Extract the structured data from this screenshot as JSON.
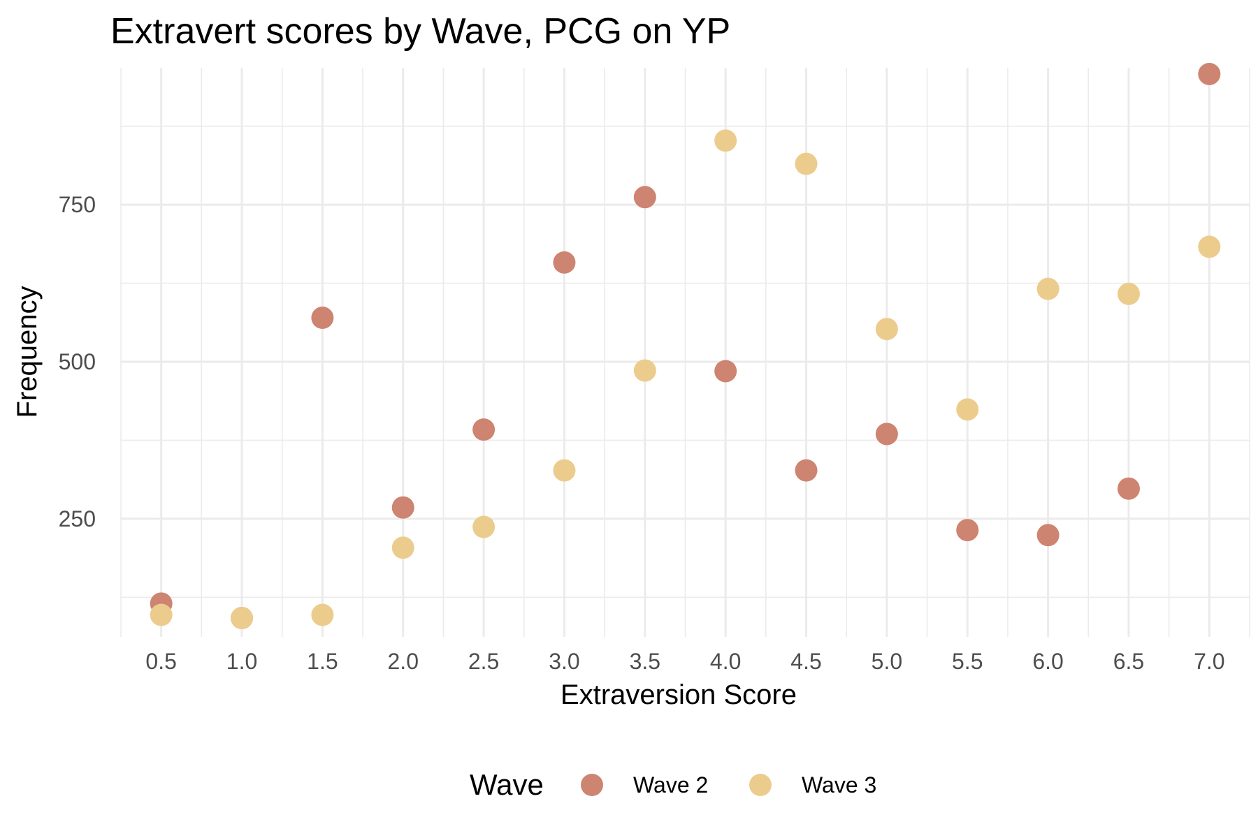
{
  "chart_data": {
    "type": "scatter",
    "title": "Extravert scores by Wave, PCG on YP",
    "xlabel": "Extraversion Score",
    "ylabel": "Frequency",
    "x": [
      0.5,
      1.0,
      1.5,
      2.0,
      2.5,
      3.0,
      3.5,
      4.0,
      4.5,
      5.0,
      5.5,
      6.0,
      6.5,
      7.0
    ],
    "x_tick_labels": [
      "0.5",
      "1.0",
      "1.5",
      "2.0",
      "2.5",
      "3.0",
      "3.5",
      "4.0",
      "4.5",
      "5.0",
      "5.5",
      "6.0",
      "6.5",
      "7.0"
    ],
    "y_ticks": [
      250,
      500,
      750
    ],
    "y_tick_labels": [
      "250",
      "500",
      "750"
    ],
    "xlim": [
      0.25,
      7.25
    ],
    "ylim": [
      62,
      968
    ],
    "grid": true,
    "legend": {
      "title": "Wave",
      "position": "bottom"
    },
    "series": [
      {
        "name": "Wave 2",
        "color": "#cd8470",
        "values": [
          115,
          92,
          570,
          268,
          392,
          658,
          762,
          485,
          327,
          385,
          232,
          224,
          298,
          958
        ]
      },
      {
        "name": "Wave 3",
        "color": "#eccc8d",
        "values": [
          97,
          92,
          97,
          204,
          237,
          327,
          486,
          852,
          815,
          552,
          424,
          616,
          608,
          683
        ]
      }
    ]
  }
}
